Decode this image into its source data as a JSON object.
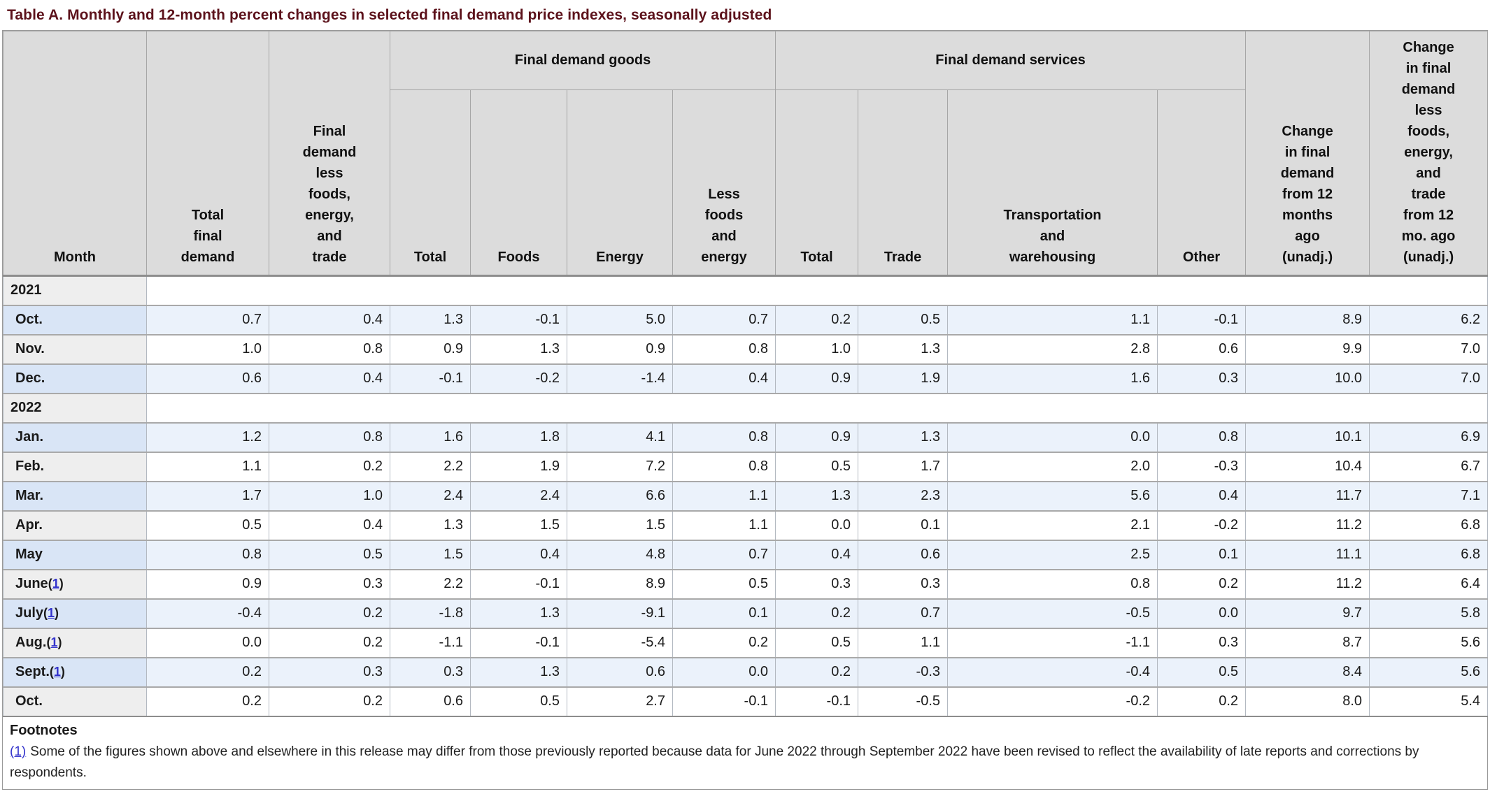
{
  "title": "Table A. Monthly and 12-month percent changes in selected final demand price indexes, seasonally adjusted",
  "header": {
    "month_label": "Month",
    "goods_group": "Final demand goods",
    "services_group": "Final demand services",
    "sub_labels": [
      "Total\nfinal\ndemand",
      "Final\ndemand\nless\nfoods,\nenergy,\nand\ntrade",
      "Total",
      "Foods",
      "Energy",
      "Less\nfoods\nand\nenergy",
      "Total",
      "Trade",
      "Transportation\nand\nwarehousing",
      "Other",
      "Change\nin final\ndemand\nfrom 12\nmonths\nago\n(unadj.)",
      "Change\nin final\ndemand\nless\nfoods,\nenergy,\nand\ntrade\nfrom 12\nmo. ago\n(unadj.)"
    ]
  },
  "punctuation": {
    "fn_open": "(",
    "fn_close": ")"
  },
  "chart_data": {
    "type": "table",
    "title": "Table A. Monthly and 12-month percent changes in selected final demand price indexes, seasonally adjusted",
    "columns": [
      "Month",
      "Total final demand",
      "Final demand less foods, energy, and trade",
      "Final demand goods - Total",
      "Final demand goods - Foods",
      "Final demand goods - Energy",
      "Final demand goods - Less foods and energy",
      "Final demand services - Total",
      "Final demand services - Trade",
      "Final demand services - Transportation and warehousing",
      "Final demand services - Other",
      "Change in final demand from 12 months ago (unadj.)",
      "Change in final demand less foods, energy, and trade from 12 mo. ago (unadj.)"
    ],
    "rows": [
      {
        "type": "year",
        "label": "2021",
        "shade": "none",
        "fn": null,
        "values": []
      },
      {
        "type": "month",
        "label": "Oct.",
        "shade": "blue",
        "fn": null,
        "values": [
          "0.7",
          "0.4",
          "1.3",
          "-0.1",
          "5.0",
          "0.7",
          "0.2",
          "0.5",
          "1.1",
          "-0.1",
          "8.9",
          "6.2"
        ]
      },
      {
        "type": "month",
        "label": "Nov.",
        "shade": "white",
        "fn": null,
        "values": [
          "1.0",
          "0.8",
          "0.9",
          "1.3",
          "0.9",
          "0.8",
          "1.0",
          "1.3",
          "2.8",
          "0.6",
          "9.9",
          "7.0"
        ]
      },
      {
        "type": "month",
        "label": "Dec.",
        "shade": "blue",
        "fn": null,
        "values": [
          "0.6",
          "0.4",
          "-0.1",
          "-0.2",
          "-1.4",
          "0.4",
          "0.9",
          "1.9",
          "1.6",
          "0.3",
          "10.0",
          "7.0"
        ]
      },
      {
        "type": "year",
        "label": "2022",
        "shade": "none",
        "fn": null,
        "values": []
      },
      {
        "type": "month",
        "label": "Jan.",
        "shade": "blue",
        "fn": null,
        "values": [
          "1.2",
          "0.8",
          "1.6",
          "1.8",
          "4.1",
          "0.8",
          "0.9",
          "1.3",
          "0.0",
          "0.8",
          "10.1",
          "6.9"
        ]
      },
      {
        "type": "month",
        "label": "Feb.",
        "shade": "white",
        "fn": null,
        "values": [
          "1.1",
          "0.2",
          "2.2",
          "1.9",
          "7.2",
          "0.8",
          "0.5",
          "1.7",
          "2.0",
          "-0.3",
          "10.4",
          "6.7"
        ]
      },
      {
        "type": "month",
        "label": "Mar.",
        "shade": "blue",
        "fn": null,
        "values": [
          "1.7",
          "1.0",
          "2.4",
          "2.4",
          "6.6",
          "1.1",
          "1.3",
          "2.3",
          "5.6",
          "0.4",
          "11.7",
          "7.1"
        ]
      },
      {
        "type": "month",
        "label": "Apr.",
        "shade": "white",
        "fn": null,
        "values": [
          "0.5",
          "0.4",
          "1.3",
          "1.5",
          "1.5",
          "1.1",
          "0.0",
          "0.1",
          "2.1",
          "-0.2",
          "11.2",
          "6.8"
        ]
      },
      {
        "type": "month",
        "label": "May",
        "shade": "blue",
        "fn": null,
        "values": [
          "0.8",
          "0.5",
          "1.5",
          "0.4",
          "4.8",
          "0.7",
          "0.4",
          "0.6",
          "2.5",
          "0.1",
          "11.1",
          "6.8"
        ]
      },
      {
        "type": "month",
        "label": "June",
        "shade": "white",
        "fn": "1",
        "values": [
          "0.9",
          "0.3",
          "2.2",
          "-0.1",
          "8.9",
          "0.5",
          "0.3",
          "0.3",
          "0.8",
          "0.2",
          "11.2",
          "6.4"
        ]
      },
      {
        "type": "month",
        "label": "July",
        "shade": "blue",
        "fn": "1",
        "values": [
          "-0.4",
          "0.2",
          "-1.8",
          "1.3",
          "-9.1",
          "0.1",
          "0.2",
          "0.7",
          "-0.5",
          "0.0",
          "9.7",
          "5.8"
        ]
      },
      {
        "type": "month",
        "label": "Aug.",
        "shade": "white",
        "fn": "1",
        "values": [
          "0.0",
          "0.2",
          "-1.1",
          "-0.1",
          "-5.4",
          "0.2",
          "0.5",
          "1.1",
          "-1.1",
          "0.3",
          "8.7",
          "5.6"
        ]
      },
      {
        "type": "month",
        "label": "Sept.",
        "shade": "blue",
        "fn": "1",
        "values": [
          "0.2",
          "0.3",
          "0.3",
          "1.3",
          "0.6",
          "0.0",
          "0.2",
          "-0.3",
          "-0.4",
          "0.5",
          "8.4",
          "5.6"
        ]
      },
      {
        "type": "month",
        "label": "Oct.",
        "shade": "white",
        "fn": null,
        "values": [
          "0.2",
          "0.2",
          "0.6",
          "0.5",
          "2.7",
          "-0.1",
          "-0.1",
          "-0.5",
          "-0.2",
          "0.2",
          "8.0",
          "5.4"
        ]
      }
    ]
  },
  "footnotes": {
    "heading": "Footnotes",
    "marker": "(1)",
    "text": "Some of the figures shown above and elsewhere in this release may differ from those previously reported because data for June 2022 through September 2022 have been revised to reflect the availability of late reports and corrections by respondents."
  },
  "colors": {
    "title": "#5c121b",
    "header_bg": "#dcdcdc",
    "row_blue_cell": "#ebf2fb",
    "row_blue_month": "#d9e5f6",
    "row_gray_month": "#eeeeee",
    "link": "#3333cc",
    "border": "#9a9a9a"
  }
}
